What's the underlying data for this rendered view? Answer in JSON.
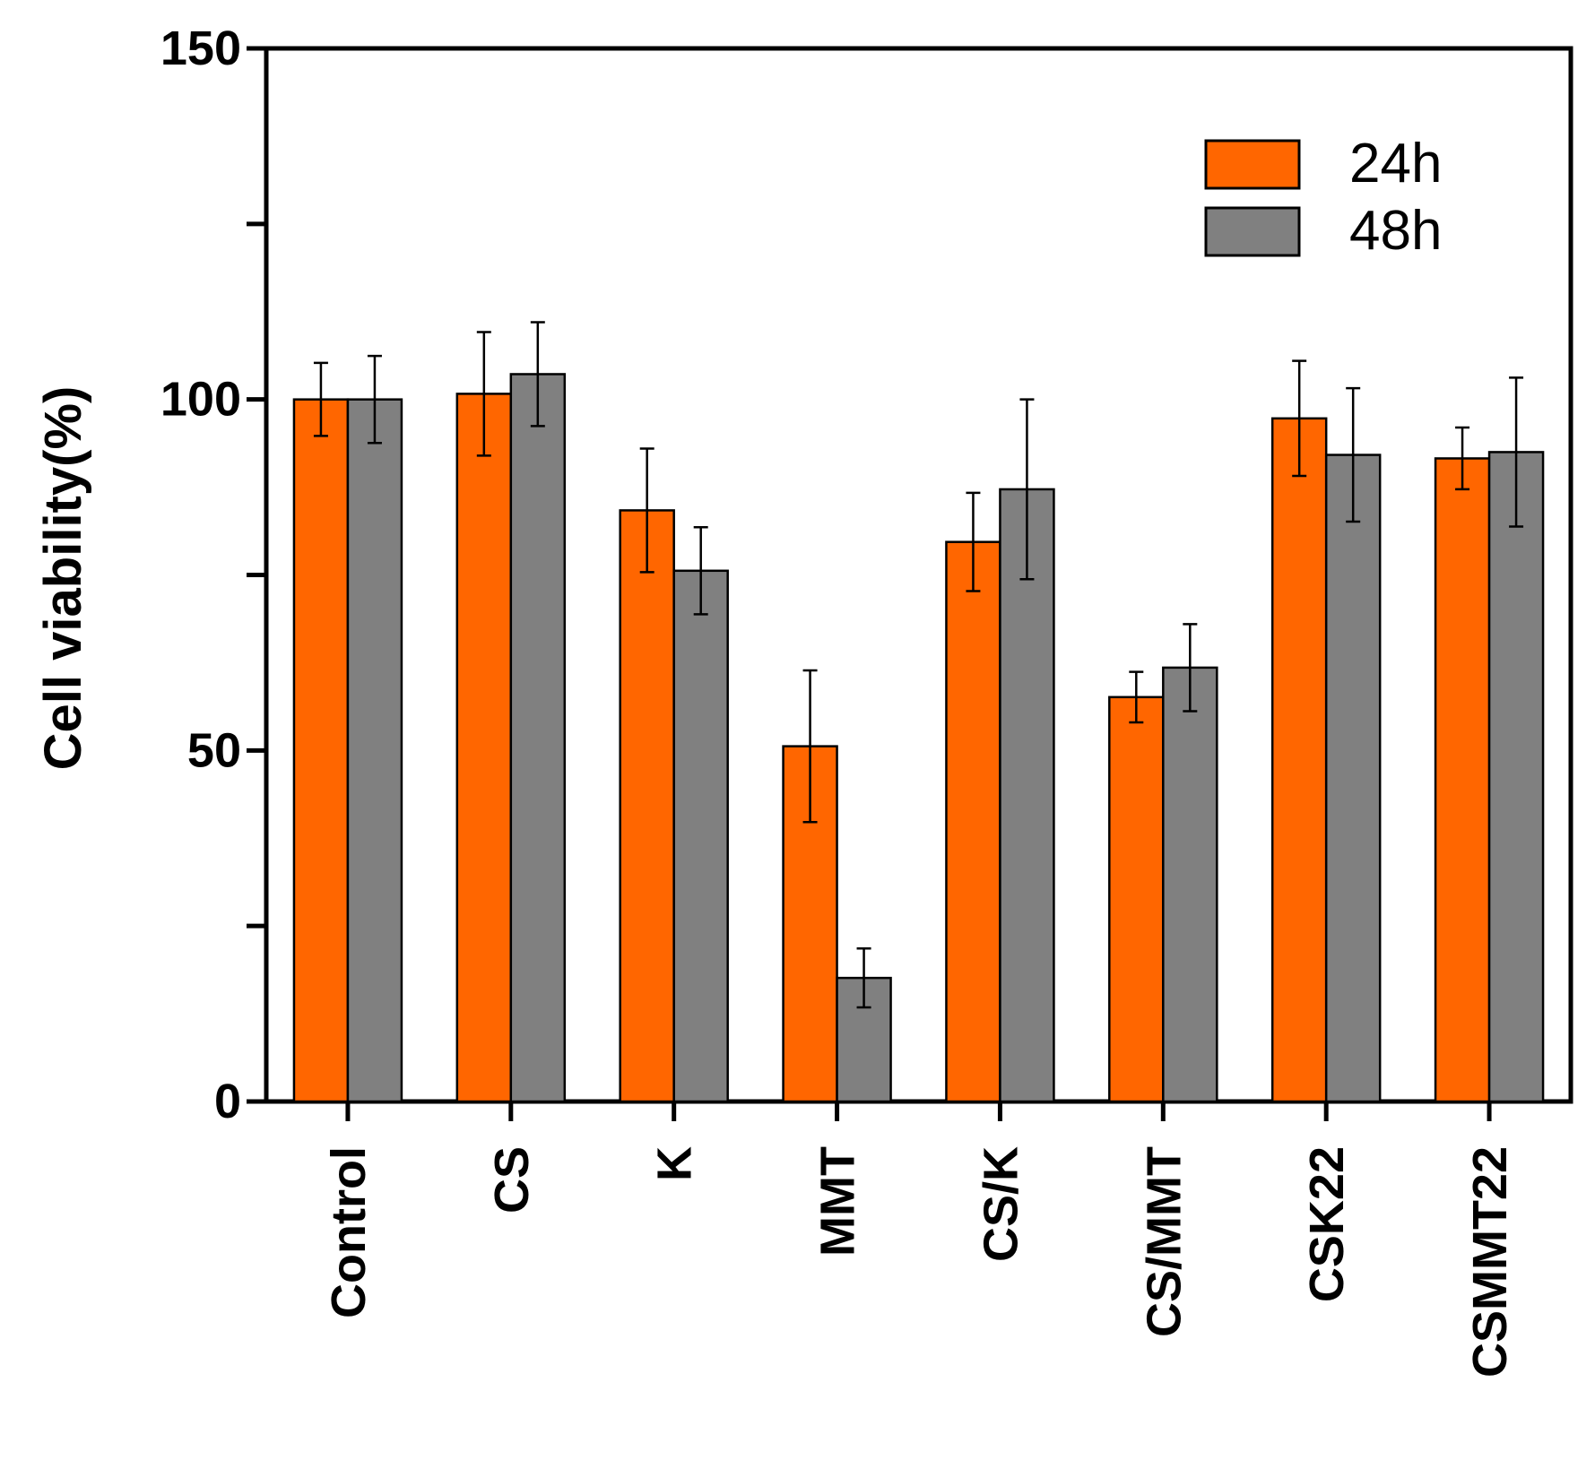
{
  "chart_data": {
    "type": "bar",
    "title": "",
    "xlabel": "",
    "ylabel": "Cell viability(%)",
    "ylim": [
      0,
      150
    ],
    "yticks": [
      0,
      50,
      100,
      150
    ],
    "y_minor_step": 25,
    "grid": false,
    "legend_position": "top-right",
    "categories": [
      "Control",
      "CS",
      "K",
      "MMT",
      "CS/K",
      "CS/MMT",
      "CSK22",
      "CSMMT22"
    ],
    "series": [
      {
        "name": "24h",
        "color": "#ff6600",
        "values": [
          100,
          100.8,
          84.2,
          50.6,
          79.7,
          57.6,
          97.3,
          91.6
        ],
        "errors": [
          5.2,
          8.8,
          8.8,
          10.8,
          7.0,
          3.6,
          8.2,
          4.4
        ]
      },
      {
        "name": "48h",
        "color": "#808080",
        "values": [
          100,
          103.6,
          75.6,
          17.6,
          87.2,
          61.8,
          92.1,
          92.5
        ],
        "errors": [
          6.2,
          7.4,
          6.2,
          4.2,
          12.8,
          6.2,
          9.5,
          10.6
        ]
      }
    ]
  }
}
